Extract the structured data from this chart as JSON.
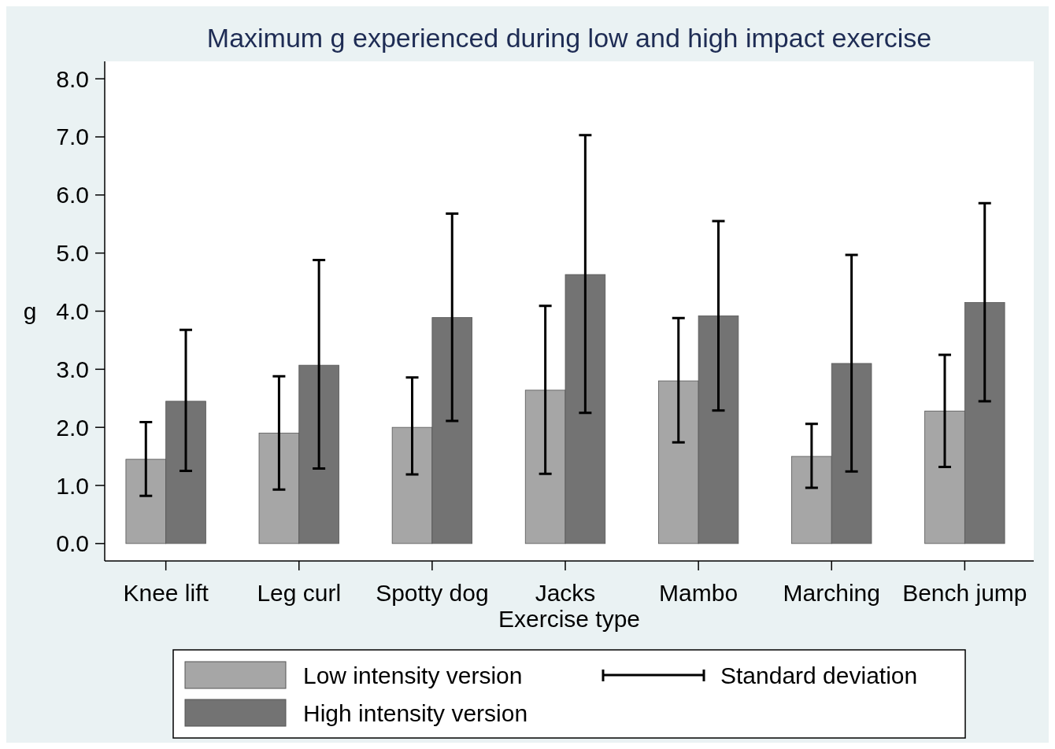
{
  "chart_data": {
    "type": "bar",
    "title": "Maximum g experienced during low and high impact exercise",
    "xlabel": "Exercise type",
    "ylabel": "g",
    "categories": [
      "Knee lift",
      "Leg curl",
      "Spotty dog",
      "Jacks",
      "Mambo",
      "Marching",
      "Bench jump"
    ],
    "series": [
      {
        "name": "Low intensity version",
        "color": "#a6a6a6",
        "values": [
          1.45,
          1.9,
          2.0,
          2.64,
          2.8,
          1.5,
          2.28
        ],
        "errors": [
          [
            0.82,
            2.09
          ],
          [
            0.93,
            2.88
          ],
          [
            1.19,
            2.86
          ],
          [
            1.2,
            4.09
          ],
          [
            1.74,
            3.88
          ],
          [
            0.96,
            2.06
          ],
          [
            1.32,
            3.25
          ]
        ]
      },
      {
        "name": "High intensity version",
        "color": "#737373",
        "values": [
          2.45,
          3.07,
          3.89,
          4.63,
          3.92,
          3.1,
          4.15
        ],
        "errors": [
          [
            1.25,
            3.68
          ],
          [
            1.29,
            4.88
          ],
          [
            2.11,
            5.68
          ],
          [
            2.25,
            7.03
          ],
          [
            2.29,
            5.55
          ],
          [
            1.24,
            4.97
          ],
          [
            2.45,
            5.86
          ]
        ]
      }
    ],
    "ylim": [
      -0.3,
      8.3
    ],
    "yticks": [
      {
        "value": 0,
        "label": "0.0"
      },
      {
        "value": 1,
        "label": "1.0"
      },
      {
        "value": 2,
        "label": "2.0"
      },
      {
        "value": 3,
        "label": "3.0"
      },
      {
        "value": 4,
        "label": "4.0"
      },
      {
        "value": 5,
        "label": "5.0"
      },
      {
        "value": 6,
        "label": "6.0"
      },
      {
        "value": 7,
        "label": "7.0"
      },
      {
        "value": 8,
        "label": "8.0"
      }
    ],
    "grid": false,
    "legend": "bottom",
    "annotations": [
      "Standard deviation"
    ]
  }
}
